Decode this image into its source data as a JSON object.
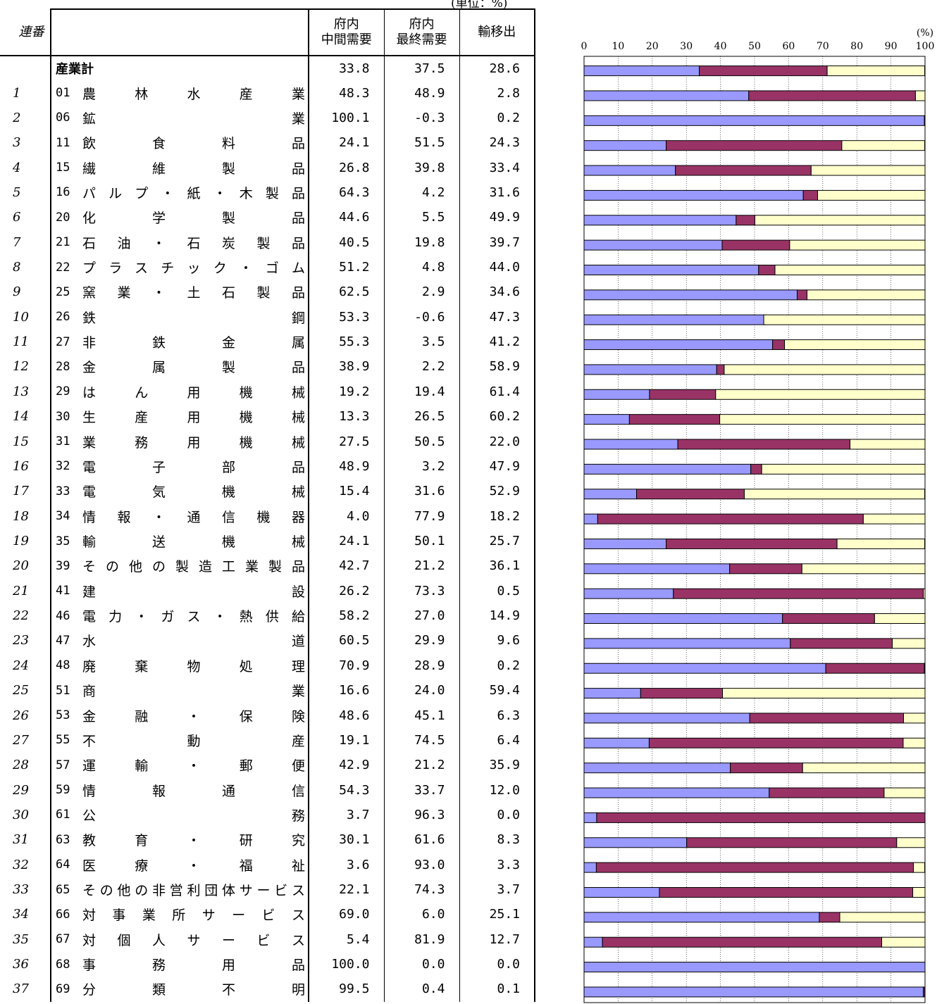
{
  "unit_note": "(単位：%)",
  "header": {
    "no": "連番",
    "col_intermediate": [
      "府内",
      "中間需要"
    ],
    "col_final": [
      "府内",
      "最終需要"
    ],
    "col_export": "輸移出"
  },
  "chart_data": {
    "type": "bar",
    "stacked": true,
    "orientation": "horizontal",
    "axis_unit": "(%)",
    "xlim": [
      0,
      100
    ],
    "xticks": [
      0,
      10,
      20,
      30,
      40,
      50,
      60,
      70,
      80,
      90,
      100
    ],
    "grid": true,
    "series": [
      {
        "name": "府内中間需要",
        "color": "#9999ff"
      },
      {
        "name": "府内最終需要",
        "color": "#993366"
      },
      {
        "name": "輸移出",
        "color": "#ffffcc"
      }
    ],
    "rows": [
      {
        "no": "",
        "code": "",
        "label": "産業計",
        "total": true,
        "values": [
          "33.8",
          "37.5",
          "28.6"
        ]
      },
      {
        "no": "1",
        "code": "01",
        "label": "農林水産業",
        "values": [
          "48.3",
          "48.9",
          "2.8"
        ]
      },
      {
        "no": "2",
        "code": "06",
        "label": "鉱業",
        "values": [
          "100.1",
          "-0.3",
          "0.2"
        ]
      },
      {
        "no": "3",
        "code": "11",
        "label": "飲食料品",
        "values": [
          "24.1",
          "51.5",
          "24.3"
        ]
      },
      {
        "no": "4",
        "code": "15",
        "label": "繊維製品",
        "values": [
          "26.8",
          "39.8",
          "33.4"
        ]
      },
      {
        "no": "5",
        "code": "16",
        "label": "パルプ・紙・木製品",
        "values": [
          "64.3",
          "4.2",
          "31.6"
        ]
      },
      {
        "no": "6",
        "code": "20",
        "label": "化学製品",
        "values": [
          "44.6",
          "5.5",
          "49.9"
        ]
      },
      {
        "no": "7",
        "code": "21",
        "label": "石油・石炭製品",
        "values": [
          "40.5",
          "19.8",
          "39.7"
        ]
      },
      {
        "no": "8",
        "code": "22",
        "label": "プラスチック・ゴム",
        "values": [
          "51.2",
          "4.8",
          "44.0"
        ]
      },
      {
        "no": "9",
        "code": "25",
        "label": "窯業・土石製品",
        "values": [
          "62.5",
          "2.9",
          "34.6"
        ]
      },
      {
        "no": "10",
        "code": "26",
        "label": "鉄鋼",
        "values": [
          "53.3",
          "-0.6",
          "47.3"
        ]
      },
      {
        "no": "11",
        "code": "27",
        "label": "非鉄金属",
        "values": [
          "55.3",
          "3.5",
          "41.2"
        ]
      },
      {
        "no": "12",
        "code": "28",
        "label": "金属製品",
        "values": [
          "38.9",
          "2.2",
          "58.9"
        ]
      },
      {
        "no": "13",
        "code": "29",
        "label": "はん用機械",
        "values": [
          "19.2",
          "19.4",
          "61.4"
        ]
      },
      {
        "no": "14",
        "code": "30",
        "label": "生産用機械",
        "values": [
          "13.3",
          "26.5",
          "60.2"
        ]
      },
      {
        "no": "15",
        "code": "31",
        "label": "業務用機械",
        "values": [
          "27.5",
          "50.5",
          "22.0"
        ]
      },
      {
        "no": "16",
        "code": "32",
        "label": "電子部品",
        "values": [
          "48.9",
          "3.2",
          "47.9"
        ]
      },
      {
        "no": "17",
        "code": "33",
        "label": "電気機械",
        "values": [
          "15.4",
          "31.6",
          "52.9"
        ]
      },
      {
        "no": "18",
        "code": "34",
        "label": "情報・通信機器",
        "values": [
          "4.0",
          "77.9",
          "18.2"
        ]
      },
      {
        "no": "19",
        "code": "35",
        "label": "輸送機械",
        "values": [
          "24.1",
          "50.1",
          "25.7"
        ]
      },
      {
        "no": "20",
        "code": "39",
        "label": "その他の製造工業製品",
        "values": [
          "42.7",
          "21.2",
          "36.1"
        ]
      },
      {
        "no": "21",
        "code": "41",
        "label": "建設",
        "values": [
          "26.2",
          "73.3",
          "0.5"
        ]
      },
      {
        "no": "22",
        "code": "46",
        "label": "電力・ガス・熱供給",
        "values": [
          "58.2",
          "27.0",
          "14.9"
        ]
      },
      {
        "no": "23",
        "code": "47",
        "label": "水道",
        "values": [
          "60.5",
          "29.9",
          "9.6"
        ]
      },
      {
        "no": "24",
        "code": "48",
        "label": "廃棄物処理",
        "values": [
          "70.9",
          "28.9",
          "0.2"
        ]
      },
      {
        "no": "25",
        "code": "51",
        "label": "商業",
        "values": [
          "16.6",
          "24.0",
          "59.4"
        ]
      },
      {
        "no": "26",
        "code": "53",
        "label": "金融・保険",
        "values": [
          "48.6",
          "45.1",
          "6.3"
        ]
      },
      {
        "no": "27",
        "code": "55",
        "label": "不動産",
        "values": [
          "19.1",
          "74.5",
          "6.4"
        ]
      },
      {
        "no": "28",
        "code": "57",
        "label": "運輸・郵便",
        "values": [
          "42.9",
          "21.2",
          "35.9"
        ]
      },
      {
        "no": "29",
        "code": "59",
        "label": "情報通信",
        "values": [
          "54.3",
          "33.7",
          "12.0"
        ]
      },
      {
        "no": "30",
        "code": "61",
        "label": "公務",
        "values": [
          "3.7",
          "96.3",
          "0.0"
        ]
      },
      {
        "no": "31",
        "code": "63",
        "label": "教育・研究",
        "values": [
          "30.1",
          "61.6",
          "8.3"
        ]
      },
      {
        "no": "32",
        "code": "64",
        "label": "医療・福祉",
        "values": [
          "3.6",
          "93.0",
          "3.3"
        ]
      },
      {
        "no": "33",
        "code": "65",
        "label": "その他の非営利団体サービス",
        "values": [
          "22.1",
          "74.3",
          "3.7"
        ]
      },
      {
        "no": "34",
        "code": "66",
        "label": "対事業所サービス",
        "values": [
          "69.0",
          "6.0",
          "25.1"
        ]
      },
      {
        "no": "35",
        "code": "67",
        "label": "対個人サービス",
        "values": [
          "5.4",
          "81.9",
          "12.7"
        ]
      },
      {
        "no": "36",
        "code": "68",
        "label": "事務用品",
        "values": [
          "100.0",
          "0.0",
          "0.0"
        ]
      },
      {
        "no": "37",
        "code": "69",
        "label": "分類不明",
        "values": [
          "99.5",
          "0.4",
          "0.1"
        ]
      }
    ]
  }
}
